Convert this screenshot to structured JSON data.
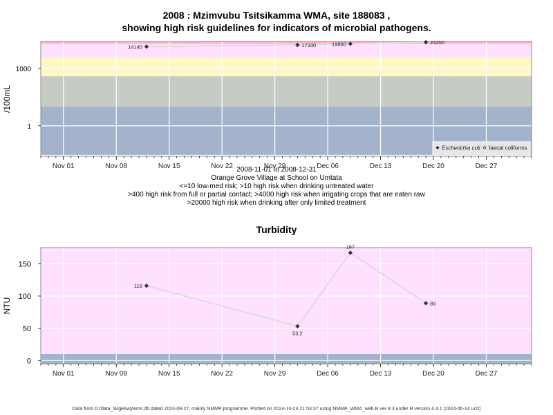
{
  "chart_data": [
    {
      "type": "scatter",
      "title_line1": "2008 : Mzimvubu Tsitsikamma WMA, site 188083 ,",
      "title_line2": "showing high risk guidelines for indicators of microbial pathogens.",
      "ylabel": "/100mL",
      "y_scale": "log",
      "yticks": [
        {
          "value": 1,
          "label": "1"
        },
        {
          "value": 1000,
          "label": "1000"
        }
      ],
      "xticks": [
        "Nov 01",
        "Nov 08",
        "Nov 15",
        "Nov 22",
        "Nov 29",
        "Dec 06",
        "Dec 13",
        "Dec 20",
        "Dec 27"
      ],
      "xlim": [
        "2008-10-29",
        "2009-01-02"
      ],
      "bands": [
        {
          "from": 0.03,
          "to": 10,
          "color": "#a3b3cc"
        },
        {
          "from": 10,
          "to": 400,
          "color": "#c6ccc3"
        },
        {
          "from": 400,
          "to": 4000,
          "color": "#fff7c4"
        },
        {
          "from": 4000,
          "to": 20000,
          "color": "#ffe0ff"
        },
        {
          "from": 20000,
          "to": 30000,
          "color": "#ffb3c6"
        }
      ],
      "series": [
        {
          "name": "Escherichia coli",
          "marker": "filled-diamond",
          "points": [
            {
              "x": "2008-11-12",
              "y": 14140,
              "label": "14140"
            },
            {
              "x": "2008-12-02",
              "y": 17330,
              "label": "17330"
            },
            {
              "x": "2008-12-09",
              "y": 19860,
              "label": "19860"
            },
            {
              "x": "2008-12-19",
              "y": 24200,
              "label": "24200"
            }
          ]
        }
      ],
      "legend": {
        "position": "bottom-right",
        "entries": [
          "Escherichia coli",
          "faecal coliforms"
        ]
      },
      "grid": true
    },
    {
      "type": "scatter",
      "title": "Turbidity",
      "ylabel": "NTU",
      "ylim": [
        -5,
        175
      ],
      "yticks": [
        0,
        50,
        100,
        150
      ],
      "xticks": [
        "Nov 01",
        "Nov 08",
        "Nov 15",
        "Nov 22",
        "Nov 29",
        "Dec 06",
        "Dec 13",
        "Dec 20",
        "Dec 27"
      ],
      "xlim": [
        "2008-10-29",
        "2009-01-02"
      ],
      "bands": [
        {
          "from": -5,
          "to": 10,
          "color": "#a3b3cc"
        },
        {
          "from": 10,
          "to": 175,
          "color": "#ffe0ff"
        }
      ],
      "series": [
        {
          "name": "",
          "marker": "filled-diamond",
          "points": [
            {
              "x": "2008-11-12",
              "y": 116,
              "label": "116"
            },
            {
              "x": "2008-12-02",
              "y": 53.2,
              "label": "53.2"
            },
            {
              "x": "2008-12-09",
              "y": 167,
              "label": "167"
            },
            {
              "x": "2008-12-19",
              "y": 89,
              "label": "89"
            }
          ]
        }
      ],
      "grid": true
    }
  ],
  "subtitle_lines": [
    "2008-11-01 to 2008-12-31",
    "Orange Grove Village at School on Umtata",
    "<=10 low-med risk; >10 high risk when drinking untreated water",
    ">400 high risk from full or partial contact; >4000 high risk when irrigating crops that are eaten raw",
    ">20000 high risk when drinking after only limited treatment"
  ],
  "footer": "Data from D:/data_large/wq/wms.db dated 2024-08-27, mainly NMMP programme. Plotted on 2024-10-24 21:53:37 using NMMP_WMA_web.R ver 9.3 under R version 4.4.1 (2024-06-14 ucrt)",
  "colors": {
    "grid": "#ffffff",
    "marker": "#333333",
    "line": "#dddddd",
    "frame": "#888888"
  }
}
